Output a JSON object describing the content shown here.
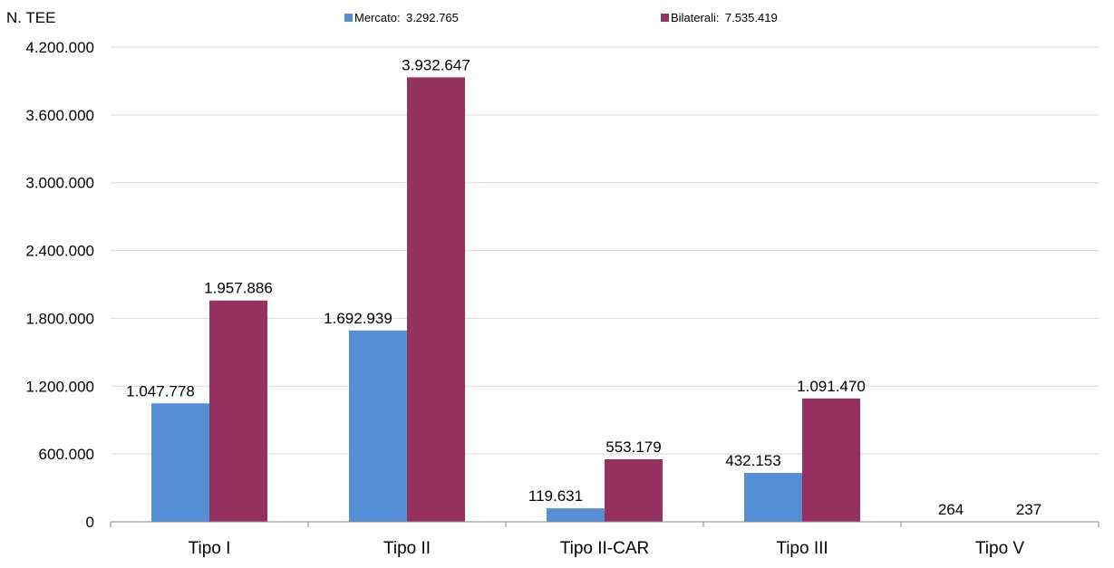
{
  "chart_data": {
    "type": "bar",
    "ylabel": "N. TEE",
    "categories": [
      "Tipo I",
      "Tipo II",
      "Tipo II-CAR",
      "Tipo III",
      "Tipo V"
    ],
    "series": [
      {
        "name": "Mercato",
        "legend_value": "3.292.765",
        "color": "#558ED5",
        "values": [
          1047778,
          1692939,
          119631,
          432153,
          264
        ],
        "labels": [
          "1.047.778",
          "1.692.939",
          "119.631",
          "432.153",
          "264"
        ]
      },
      {
        "name": "Bilaterali",
        "legend_value": "7.535.419",
        "color": "#953262",
        "values": [
          1957886,
          3932647,
          553179,
          1091470,
          237
        ],
        "labels": [
          "1.957.886",
          "3.932.647",
          "553.179",
          "1.091.470",
          "237"
        ]
      }
    ],
    "ylim": [
      0,
      4200000
    ],
    "yticks": [
      0,
      600000,
      1200000,
      1800000,
      2400000,
      3000000,
      3600000,
      4200000
    ],
    "ytick_labels": [
      "0",
      "600.000",
      "1.200.000",
      "1.800.000",
      "2.400.000",
      "3.000.000",
      "3.600.000",
      "4.200.000"
    ],
    "grid": true,
    "legend_position": "top"
  }
}
